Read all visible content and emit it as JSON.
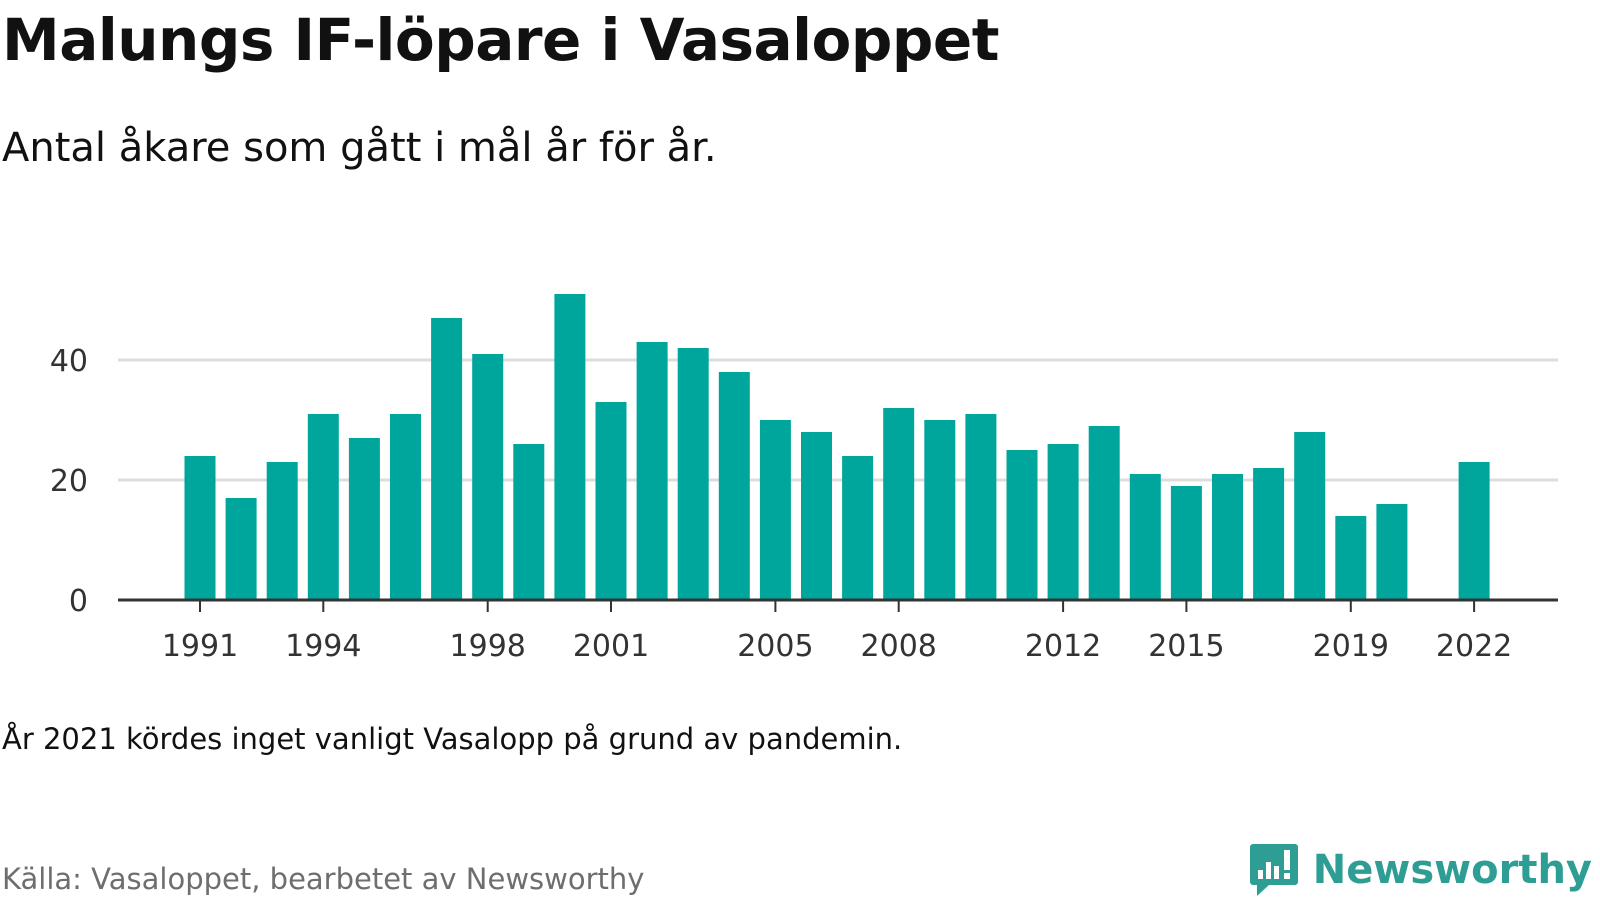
{
  "title": "Malungs IF-löpare i Vasaloppet",
  "subtitle": "Antal åkare som gått i mål år för år.",
  "note": "År 2021 kördes inget vanligt Vasalopp på grund av pandemin.",
  "source": "Källa: Vasaloppet, bearbetet av Newsworthy",
  "brand": {
    "name": "Newsworthy",
    "icon": "bar-chart-speech-bubble-icon",
    "color": "#2e9e95"
  },
  "colors": {
    "bar": "#00a69c",
    "grid": "#dddddd",
    "axis": "#333333"
  },
  "chart_data": {
    "type": "bar",
    "title": "Malungs IF-löpare i Vasaloppet",
    "subtitle": "Antal åkare som gått i mål år för år.",
    "xlabel": "",
    "ylabel": "",
    "ylim": [
      0,
      55
    ],
    "yticks": [
      0,
      20,
      40
    ],
    "xticks": [
      1991,
      1994,
      1998,
      2001,
      2005,
      2008,
      2012,
      2015,
      2019,
      2022
    ],
    "grid": true,
    "legend": "none",
    "categories": [
      1991,
      1992,
      1993,
      1994,
      1995,
      1996,
      1997,
      1998,
      1999,
      2000,
      2001,
      2002,
      2003,
      2004,
      2005,
      2006,
      2007,
      2008,
      2009,
      2010,
      2011,
      2012,
      2013,
      2014,
      2015,
      2016,
      2017,
      2018,
      2019,
      2020,
      2021,
      2022
    ],
    "values": [
      24,
      17,
      23,
      31,
      27,
      31,
      47,
      41,
      26,
      51,
      33,
      43,
      42,
      38,
      30,
      28,
      24,
      32,
      30,
      31,
      25,
      26,
      29,
      21,
      19,
      21,
      22,
      28,
      14,
      16,
      null,
      23
    ]
  }
}
